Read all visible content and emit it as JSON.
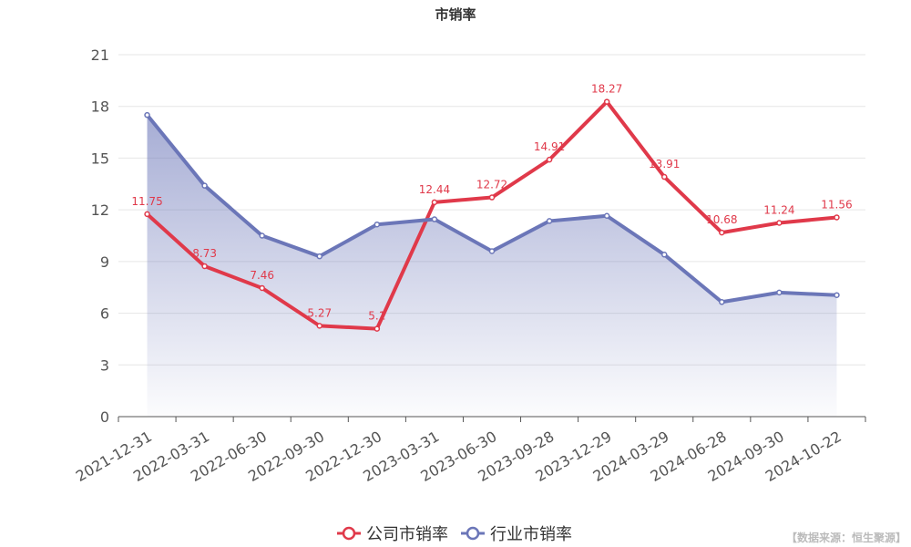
{
  "chart_data": {
    "type": "line",
    "title": "市销率",
    "categories": [
      "2021-12-31",
      "2022-03-31",
      "2022-06-30",
      "2022-09-30",
      "2022-12-30",
      "2023-03-31",
      "2023-06-30",
      "2023-09-28",
      "2023-12-29",
      "2024-03-29",
      "2024-06-28",
      "2024-09-30",
      "2024-10-22"
    ],
    "series": [
      {
        "name": "公司市销率",
        "color": "#e0394a",
        "values": [
          11.75,
          8.73,
          7.46,
          5.27,
          5.1,
          12.44,
          12.72,
          14.91,
          18.27,
          13.91,
          10.68,
          11.24,
          11.56
        ],
        "labels": [
          "11.75",
          "8.73",
          "7.46",
          "5.27",
          "5.1",
          "12.44",
          "12.72",
          "14.91",
          "18.27",
          "13.91",
          "10.68",
          "11.24",
          "11.56"
        ]
      },
      {
        "name": "行业市销率",
        "color": "#6b76b8",
        "values": [
          17.5,
          13.4,
          10.5,
          9.3,
          11.15,
          11.45,
          9.6,
          11.35,
          11.65,
          9.4,
          6.65,
          7.2,
          7.05
        ],
        "area": true
      }
    ],
    "yticks": [
      0,
      3,
      6,
      9,
      12,
      15,
      18,
      21
    ],
    "ylim": [
      0,
      21
    ],
    "grid": true,
    "legend_position": "bottom-center"
  },
  "source_label": "【数据来源：恒生聚源】"
}
